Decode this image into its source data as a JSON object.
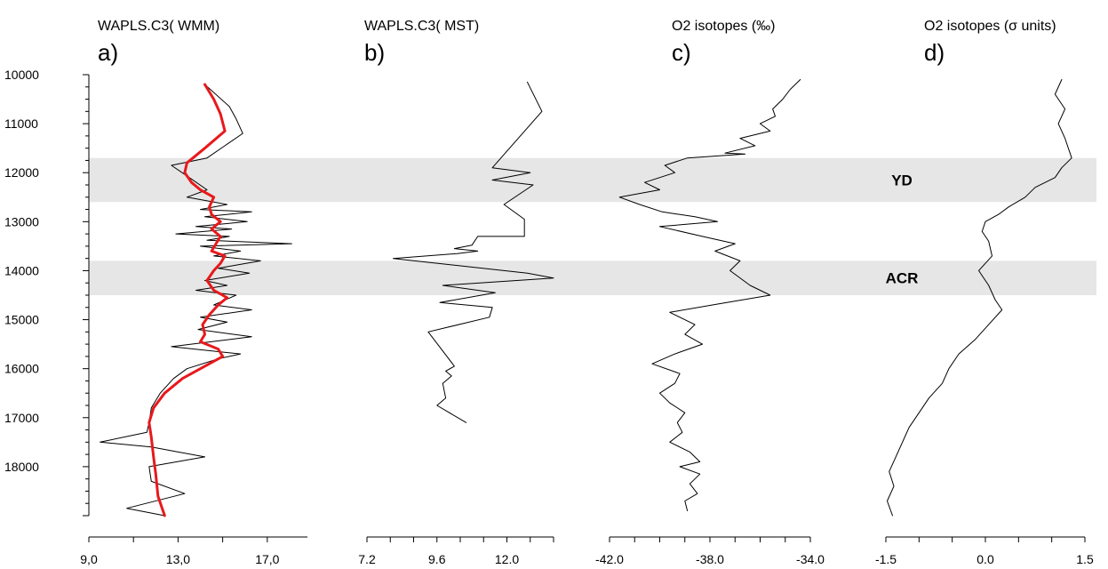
{
  "chart_data": {
    "type": "line",
    "y_axis": {
      "ticks": [
        10000,
        11000,
        12000,
        13000,
        14000,
        15000,
        16000,
        17000,
        18000
      ],
      "tick_labels": [
        "10000",
        "11000",
        "12000",
        "13000",
        "14000",
        "15000",
        "16000",
        "17000",
        "18000"
      ],
      "range": [
        10000,
        19000
      ],
      "reversed": true,
      "minor_step": 250
    },
    "bands": [
      {
        "label": "YD",
        "from": 11700,
        "to": 12600,
        "color": "#e6e6e6"
      },
      {
        "label": "ACR",
        "from": 13800,
        "to": 14500,
        "color": "#e6e6e6"
      }
    ],
    "panels": [
      {
        "id": "a",
        "letter": "a)",
        "title": "WAPLS.C3( WMM)",
        "xlim": [
          9.0,
          18.8
        ],
        "x_ticks": [
          9.0,
          13.0,
          17.0
        ],
        "x_tick_labels": [
          "9,0",
          "13,0",
          "17,0"
        ],
        "minor_step": 2,
        "series": [
          {
            "color": "#000000",
            "width": 1,
            "points": [
              [
                14.2,
                10200
              ],
              [
                15.3,
                10650
              ],
              [
                15.6,
                10900
              ],
              [
                15.9,
                11200
              ],
              [
                15.1,
                11450
              ],
              [
                14.3,
                11700
              ],
              [
                12.7,
                11850
              ],
              [
                13.5,
                12100
              ],
              [
                14.3,
                12350
              ],
              [
                13.4,
                12500
              ],
              [
                15.2,
                12650
              ],
              [
                14.0,
                12750
              ],
              [
                16.3,
                12800
              ],
              [
                14.2,
                12900
              ],
              [
                16.1,
                13000
              ],
              [
                13.8,
                13100
              ],
              [
                15.4,
                13150
              ],
              [
                12.9,
                13250
              ],
              [
                15.3,
                13300
              ],
              [
                14.3,
                13380
              ],
              [
                18.1,
                13450
              ],
              [
                14.0,
                13500
              ],
              [
                15.8,
                13600
              ],
              [
                14.6,
                13700
              ],
              [
                16.7,
                13800
              ],
              [
                14.8,
                13950
              ],
              [
                16.2,
                14050
              ],
              [
                14.2,
                14200
              ],
              [
                15.2,
                14300
              ],
              [
                13.8,
                14400
              ],
              [
                15.6,
                14500
              ],
              [
                14.6,
                14700
              ],
              [
                16.3,
                14800
              ],
              [
                14.0,
                14950
              ],
              [
                15.2,
                15050
              ],
              [
                13.9,
                15200
              ],
              [
                16.3,
                15350
              ],
              [
                12.7,
                15550
              ],
              [
                15.8,
                15700
              ],
              [
                14.8,
                15800
              ],
              [
                13.4,
                16000
              ],
              [
                12.8,
                16200
              ],
              [
                12.2,
                16500
              ],
              [
                11.8,
                16800
              ],
              [
                11.7,
                17100
              ],
              [
                11.6,
                17300
              ],
              [
                9.5,
                17500
              ],
              [
                11.8,
                17600
              ],
              [
                14.2,
                17800
              ],
              [
                11.7,
                18000
              ],
              [
                11.8,
                18300
              ],
              [
                13.3,
                18550
              ],
              [
                10.7,
                18850
              ],
              [
                12.4,
                19000
              ]
            ]
          },
          {
            "color": "#e8191c",
            "width": 3,
            "points": [
              [
                14.2,
                10200
              ],
              [
                14.6,
                10500
              ],
              [
                14.9,
                10800
              ],
              [
                15.1,
                11150
              ],
              [
                14.2,
                11500
              ],
              [
                13.4,
                11800
              ],
              [
                13.3,
                12000
              ],
              [
                13.6,
                12200
              ],
              [
                14.0,
                12350
              ],
              [
                14.6,
                12500
              ],
              [
                14.4,
                12700
              ],
              [
                14.5,
                12850
              ],
              [
                14.9,
                13000
              ],
              [
                14.5,
                13150
              ],
              [
                14.9,
                13300
              ],
              [
                14.7,
                13450
              ],
              [
                14.5,
                13600
              ],
              [
                15.1,
                13700
              ],
              [
                14.9,
                13850
              ],
              [
                14.6,
                14000
              ],
              [
                14.3,
                14200
              ],
              [
                14.6,
                14400
              ],
              [
                15.2,
                14550
              ],
              [
                14.8,
                14700
              ],
              [
                14.4,
                14900
              ],
              [
                14.1,
                15100
              ],
              [
                14.2,
                15300
              ],
              [
                14.0,
                15450
              ],
              [
                14.8,
                15600
              ],
              [
                15.0,
                15750
              ],
              [
                14.2,
                15950
              ],
              [
                13.2,
                16200
              ],
              [
                12.4,
                16500
              ],
              [
                11.9,
                16800
              ],
              [
                11.7,
                17100
              ],
              [
                11.8,
                17400
              ],
              [
                11.9,
                17800
              ],
              [
                12.0,
                18150
              ],
              [
                12.1,
                18600
              ],
              [
                12.4,
                19000
              ]
            ]
          }
        ]
      },
      {
        "id": "b",
        "letter": "b)",
        "title": "WAPLS.C3( MST)",
        "xlim": [
          7.2,
          13.6
        ],
        "x_ticks": [
          7.2,
          9.6,
          12.0
        ],
        "x_tick_labels": [
          "7.2",
          "9.6",
          "12.0"
        ],
        "minor_step": 0.8,
        "series": [
          {
            "color": "#000000",
            "width": 1,
            "points": [
              [
                12.7,
                10150
              ],
              [
                13.2,
                10750
              ],
              [
                11.5,
                11900
              ],
              [
                12.8,
                12000
              ],
              [
                11.5,
                12150
              ],
              [
                12.9,
                12250
              ],
              [
                11.9,
                12650
              ],
              [
                12.6,
                12950
              ],
              [
                12.6,
                13300
              ],
              [
                11.0,
                13300
              ],
              [
                10.8,
                13480
              ],
              [
                10.2,
                13550
              ],
              [
                11.0,
                13600
              ],
              [
                10.3,
                13650
              ],
              [
                8.1,
                13750
              ],
              [
                12.7,
                14050
              ],
              [
                13.6,
                14150
              ],
              [
                9.8,
                14300
              ],
              [
                11.6,
                14450
              ],
              [
                9.7,
                14650
              ],
              [
                11.5,
                14750
              ],
              [
                11.4,
                14950
              ],
              [
                9.3,
                15250
              ],
              [
                10.2,
                15950
              ],
              [
                9.9,
                16050
              ],
              [
                10.1,
                16150
              ],
              [
                9.8,
                16300
              ],
              [
                9.9,
                16600
              ],
              [
                9.6,
                16750
              ],
              [
                10.6,
                17100
              ]
            ]
          }
        ]
      },
      {
        "id": "c",
        "letter": "c)",
        "title": "O2 isotopes (‰)",
        "xlim": [
          -42.0,
          -34.0
        ],
        "x_ticks": [
          -42.0,
          -38.0,
          -34.0
        ],
        "x_tick_labels": [
          "-42.0",
          "-38.0",
          "-34.0"
        ],
        "minor_step": 1,
        "series": [
          {
            "color": "#000000",
            "width": 1,
            "points": [
              [
                -34.4,
                10100
              ],
              [
                -34.8,
                10300
              ],
              [
                -35.1,
                10500
              ],
              [
                -35.5,
                10700
              ],
              [
                -35.4,
                10850
              ],
              [
                -36.0,
                11000
              ],
              [
                -35.6,
                11150
              ],
              [
                -36.8,
                11300
              ],
              [
                -36.2,
                11450
              ],
              [
                -37.4,
                11600
              ],
              [
                -36.6,
                11620
              ],
              [
                -38.9,
                11700
              ],
              [
                -39.8,
                11850
              ],
              [
                -39.4,
                12000
              ],
              [
                -40.6,
                12200
              ],
              [
                -40.0,
                12350
              ],
              [
                -41.6,
                12500
              ],
              [
                -40.8,
                12650
              ],
              [
                -39.9,
                12800
              ],
              [
                -38.6,
                12900
              ],
              [
                -37.7,
                13000
              ],
              [
                -40.0,
                13100
              ],
              [
                -38.3,
                13300
              ],
              [
                -37.0,
                13450
              ],
              [
                -37.8,
                13600
              ],
              [
                -36.8,
                13800
              ],
              [
                -37.2,
                14000
              ],
              [
                -36.4,
                14300
              ],
              [
                -35.6,
                14500
              ],
              [
                -37.9,
                14700
              ],
              [
                -39.6,
                14850
              ],
              [
                -38.6,
                15100
              ],
              [
                -39.0,
                15300
              ],
              [
                -38.3,
                15500
              ],
              [
                -39.4,
                15700
              ],
              [
                -40.3,
                15900
              ],
              [
                -39.2,
                16100
              ],
              [
                -39.4,
                16300
              ],
              [
                -40.0,
                16500
              ],
              [
                -39.6,
                16700
              ],
              [
                -39.0,
                16900
              ],
              [
                -39.3,
                17100
              ],
              [
                -39.1,
                17300
              ],
              [
                -39.6,
                17500
              ],
              [
                -38.8,
                17700
              ],
              [
                -38.4,
                17900
              ],
              [
                -39.2,
                18000
              ],
              [
                -38.4,
                18150
              ],
              [
                -38.8,
                18350
              ],
              [
                -38.5,
                18550
              ],
              [
                -39.0,
                18700
              ],
              [
                -38.9,
                18900
              ]
            ]
          }
        ]
      },
      {
        "id": "d",
        "letter": "d)",
        "title": "O2 isotopes (σ units)",
        "xlim": [
          -1.5,
          1.5
        ],
        "x_ticks": [
          -1.5,
          0.0,
          1.5
        ],
        "x_tick_labels": [
          "-1.5",
          "0.0",
          "1.5"
        ],
        "minor_step": 0.5,
        "series": [
          {
            "color": "#000000",
            "width": 1,
            "points": [
              [
                1.15,
                10100
              ],
              [
                1.05,
                10400
              ],
              [
                1.2,
                10700
              ],
              [
                1.1,
                11000
              ],
              [
                1.2,
                11300
              ],
              [
                1.3,
                11700
              ],
              [
                1.15,
                11900
              ],
              [
                1.05,
                12100
              ],
              [
                0.75,
                12300
              ],
              [
                0.6,
                12500
              ],
              [
                0.35,
                12700
              ],
              [
                0.2,
                12850
              ],
              [
                0.0,
                13000
              ],
              [
                -0.05,
                13200
              ],
              [
                0.05,
                13400
              ],
              [
                0.1,
                13700
              ],
              [
                -0.1,
                14000
              ],
              [
                0.05,
                14300
              ],
              [
                0.15,
                14600
              ],
              [
                0.25,
                14800
              ],
              [
                0.05,
                15100
              ],
              [
                -0.15,
                15400
              ],
              [
                -0.4,
                15700
              ],
              [
                -0.55,
                16000
              ],
              [
                -0.65,
                16300
              ],
              [
                -0.85,
                16600
              ],
              [
                -1.0,
                16900
              ],
              [
                -1.15,
                17200
              ],
              [
                -1.25,
                17500
              ],
              [
                -1.35,
                17800
              ],
              [
                -1.45,
                18100
              ],
              [
                -1.38,
                18400
              ],
              [
                -1.48,
                18700
              ],
              [
                -1.4,
                19000
              ]
            ]
          }
        ]
      }
    ]
  }
}
